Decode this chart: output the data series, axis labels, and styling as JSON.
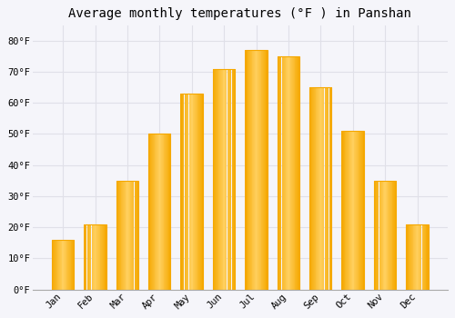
{
  "title": "Average monthly temperatures (°F ) in Panshan",
  "months": [
    "Jan",
    "Feb",
    "Mar",
    "Apr",
    "May",
    "Jun",
    "Jul",
    "Aug",
    "Sep",
    "Oct",
    "Nov",
    "Dec"
  ],
  "values": [
    16,
    21,
    35,
    50,
    63,
    71,
    77,
    75,
    65,
    51,
    35,
    21
  ],
  "bar_color_center": "#FFD060",
  "bar_color_edge": "#F5A800",
  "ylim": [
    0,
    85
  ],
  "yticks": [
    0,
    10,
    20,
    30,
    40,
    50,
    60,
    70,
    80
  ],
  "ytick_labels": [
    "0°F",
    "10°F",
    "20°F",
    "30°F",
    "40°F",
    "50°F",
    "60°F",
    "70°F",
    "80°F"
  ],
  "background_color": "#f5f5fa",
  "plot_bg_color": "#f5f5fa",
  "grid_color": "#e0e0e8",
  "title_fontsize": 10,
  "tick_fontsize": 7.5,
  "font_family": "monospace",
  "bar_width": 0.68
}
